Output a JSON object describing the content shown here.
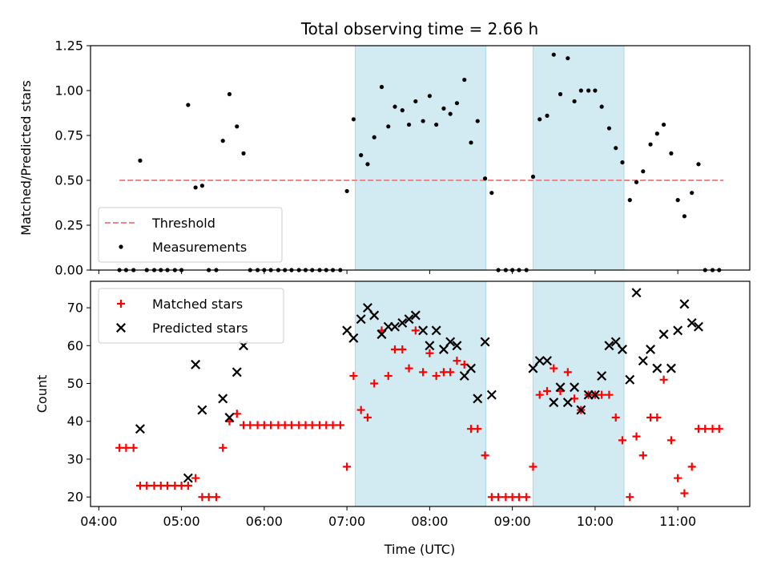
{
  "chart_data": {
    "title": "Total observing time = 2.66 h",
    "xlabel": "Time (UTC)",
    "x_unit": "hours UTC",
    "x_ticks": [
      4,
      5,
      6,
      7,
      8,
      9,
      10,
      11
    ],
    "x_tick_labels": [
      "04:00",
      "05:00",
      "06:00",
      "07:00",
      "08:00",
      "09:00",
      "10:00",
      "11:00"
    ],
    "xlim": [
      3.9,
      11.87
    ],
    "highlight_intervals": [
      [
        7.1,
        8.68
      ],
      [
        9.25,
        10.35
      ]
    ],
    "highlight_color": "#add8e6",
    "panels": [
      {
        "type": "scatter",
        "ylabel": "Matched/Predicted stars",
        "ylim": [
          0,
          1.25
        ],
        "y_ticks": [
          0,
          0.25,
          0.5,
          0.75,
          1.0,
          1.25
        ],
        "y_tick_labels": [
          "0.00",
          "0.25",
          "0.50",
          "0.75",
          "1.00",
          "1.25"
        ],
        "legend_position": "lower left",
        "threshold": {
          "name": "Threshold",
          "value": 0.5,
          "x_range": [
            4.25,
            11.55
          ],
          "color": "#ff8080",
          "style": "dashed"
        },
        "series": [
          {
            "name": "Measurements",
            "marker": "dot",
            "color": "#000000",
            "x": [
              4.25,
              4.33,
              4.42,
              4.5,
              4.58,
              4.67,
              4.75,
              4.83,
              4.92,
              5.0,
              5.08,
              5.17,
              5.25,
              5.33,
              5.42,
              5.5,
              5.58,
              5.67,
              5.75,
              5.83,
              5.92,
              6.0,
              6.08,
              6.17,
              6.25,
              6.33,
              6.42,
              6.5,
              6.58,
              6.67,
              6.75,
              6.83,
              6.92,
              7.0,
              7.08,
              7.17,
              7.25,
              7.33,
              7.42,
              7.5,
              7.58,
              7.67,
              7.75,
              7.83,
              7.92,
              8.0,
              8.08,
              8.17,
              8.25,
              8.33,
              8.42,
              8.5,
              8.58,
              8.67,
              8.75,
              8.83,
              8.92,
              9.0,
              9.08,
              9.17,
              9.25,
              9.33,
              9.42,
              9.5,
              9.58,
              9.67,
              9.75,
              9.83,
              9.92,
              10.0,
              10.08,
              10.17,
              10.25,
              10.33,
              10.42,
              10.5,
              10.58,
              10.67,
              10.75,
              10.83,
              10.92,
              11.0,
              11.08,
              11.17,
              11.25,
              11.33,
              11.42,
              11.5
            ],
            "y": [
              0,
              0,
              0,
              0.61,
              0,
              0,
              0,
              0,
              0,
              0,
              0.92,
              0.46,
              0.47,
              0,
              0,
              0.72,
              0.98,
              0.8,
              0.65,
              0,
              0,
              0,
              0,
              0,
              0,
              0,
              0,
              0,
              0,
              0,
              0,
              0,
              0,
              0.44,
              0.84,
              0.64,
              0.59,
              0.74,
              1.02,
              0.8,
              0.91,
              0.89,
              0.81,
              0.94,
              0.83,
              0.97,
              0.81,
              0.9,
              0.87,
              0.93,
              1.06,
              0.71,
              0.83,
              0.51,
              0.43,
              0,
              0,
              0,
              0,
              0,
              0.52,
              0.84,
              0.86,
              1.2,
              0.98,
              1.18,
              0.94,
              1.0,
              1.0,
              1.0,
              0.91,
              0.79,
              0.68,
              0.6,
              0.39,
              0.49,
              0.55,
              0.7,
              0.76,
              0.81,
              0.65,
              0.39,
              0.3,
              0.43,
              0.59,
              0,
              0,
              0
            ]
          }
        ]
      },
      {
        "type": "scatter",
        "ylabel": "Count",
        "ylim": [
          17.5,
          77
        ],
        "y_ticks": [
          20,
          30,
          40,
          50,
          60,
          70
        ],
        "y_tick_labels": [
          "20",
          "30",
          "40",
          "50",
          "60",
          "70"
        ],
        "legend_position": "upper left",
        "series": [
          {
            "name": "Matched stars",
            "marker": "plus",
            "color": "#ff0000",
            "x": [
              4.25,
              4.33,
              4.42,
              4.5,
              4.58,
              4.67,
              4.75,
              4.83,
              4.92,
              5.0,
              5.08,
              5.17,
              5.25,
              5.33,
              5.42,
              5.5,
              5.58,
              5.67,
              5.75,
              5.83,
              5.92,
              6.0,
              6.08,
              6.17,
              6.25,
              6.33,
              6.42,
              6.5,
              6.58,
              6.67,
              6.75,
              6.83,
              6.92,
              7.0,
              7.08,
              7.17,
              7.25,
              7.33,
              7.42,
              7.5,
              7.58,
              7.67,
              7.75,
              7.83,
              7.92,
              8.0,
              8.08,
              8.17,
              8.25,
              8.33,
              8.42,
              8.5,
              8.58,
              8.67,
              8.75,
              8.83,
              8.92,
              9.0,
              9.08,
              9.17,
              9.25,
              9.33,
              9.42,
              9.5,
              9.58,
              9.67,
              9.75,
              9.83,
              9.92,
              10.0,
              10.08,
              10.17,
              10.25,
              10.33,
              10.42,
              10.5,
              10.58,
              10.67,
              10.75,
              10.83,
              10.92,
              11.0,
              11.08,
              11.17,
              11.25,
              11.33,
              11.42,
              11.5
            ],
            "y": [
              33,
              33,
              33,
              23,
              23,
              23,
              23,
              23,
              23,
              23,
              23,
              25,
              20,
              20,
              20,
              33,
              40,
              42,
              39,
              39,
              39,
              39,
              39,
              39,
              39,
              39,
              39,
              39,
              39,
              39,
              39,
              39,
              39,
              28,
              52,
              43,
              41,
              50,
              64,
              52,
              59,
              59,
              54,
              64,
              53,
              58,
              52,
              53,
              53,
              56,
              55,
              38,
              38,
              31,
              20,
              20,
              20,
              20,
              20,
              20,
              28,
              47,
              48,
              54,
              48,
              53,
              46,
              43,
              47,
              47,
              47,
              47,
              41,
              35,
              20,
              36,
              31,
              41,
              41,
              51,
              35,
              25,
              21,
              28,
              38,
              38,
              38,
              38
            ]
          },
          {
            "name": "Predicted stars",
            "marker": "x",
            "color": "#000000",
            "x": [
              4.5,
              5.08,
              5.17,
              5.25,
              5.5,
              5.58,
              5.67,
              5.75,
              7.0,
              7.08,
              7.17,
              7.25,
              7.33,
              7.42,
              7.5,
              7.58,
              7.67,
              7.75,
              7.83,
              7.92,
              8.0,
              8.08,
              8.17,
              8.25,
              8.33,
              8.42,
              8.5,
              8.58,
              8.67,
              8.75,
              9.25,
              9.33,
              9.42,
              9.5,
              9.58,
              9.67,
              9.75,
              9.83,
              9.92,
              10.0,
              10.08,
              10.17,
              10.25,
              10.33,
              10.42,
              10.5,
              10.58,
              10.67,
              10.75,
              10.83,
              10.92,
              11.0,
              11.08,
              11.17,
              11.25
            ],
            "y": [
              38,
              25,
              55,
              43,
              46,
              41,
              53,
              60,
              64,
              62,
              67,
              70,
              68,
              63,
              65,
              65,
              66,
              67,
              68,
              64,
              60,
              64,
              59,
              61,
              60,
              52,
              54,
              46,
              61,
              47,
              54,
              56,
              56,
              45,
              49,
              45,
              49,
              43,
              47,
              47,
              52,
              60,
              61,
              59,
              51,
              74,
              56,
              59,
              54,
              63,
              54,
              64,
              71,
              66,
              65
            ]
          }
        ]
      }
    ]
  }
}
